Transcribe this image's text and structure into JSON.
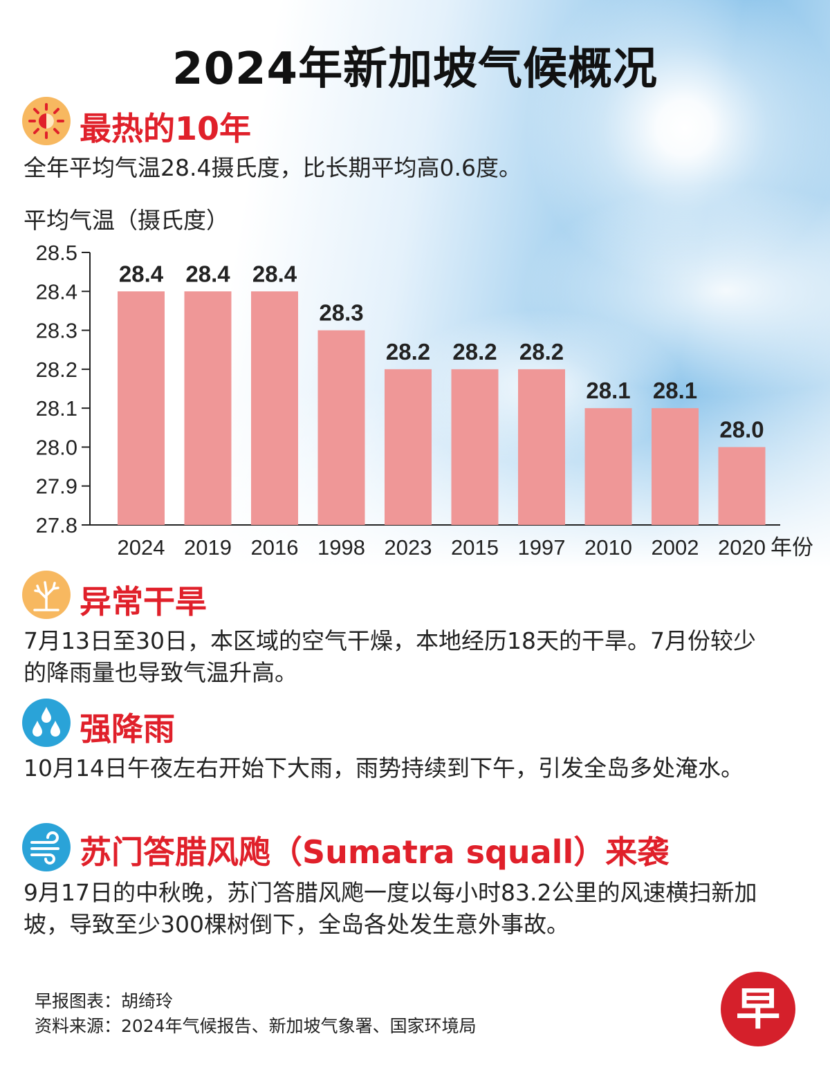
{
  "title": "2024年新加坡气候概况",
  "colors": {
    "accent": "#e0202a",
    "bar": "#ef9797",
    "text": "#222222"
  },
  "sections": {
    "hottest": {
      "icon": "sun-icon",
      "heading": "最热的10年",
      "text": "全年平均气温28.4摄氏度，比长期平均高0.6度。"
    },
    "drought": {
      "icon": "dry-tree-icon",
      "heading": "异常干旱",
      "text": "7月13日至30日，本区域的空气干燥，本地经历18天的干旱。7月份较少的降雨量也导致气温升高。"
    },
    "rain": {
      "icon": "raindrops-icon",
      "heading": "强降雨",
      "text": "10月14日午夜左右开始下大雨，雨势持续到下午，引发全岛多处淹水。"
    },
    "squall": {
      "icon": "wind-icon",
      "heading": "苏门答腊风飑（Sumatra squall）来袭",
      "text": "9月17日的中秋晚，苏门答腊风飑一度以每小时83.2公里的风速横扫新加坡，导致至少300棵树倒下，全岛各处发生意外事故。"
    }
  },
  "chart_data": {
    "type": "bar",
    "title": "最热的10年",
    "ylabel": "平均气温（摄氏度）",
    "xlabel": "年份",
    "categories": [
      "2024",
      "2019",
      "2016",
      "1998",
      "2023",
      "2015",
      "1997",
      "2010",
      "2002",
      "2020"
    ],
    "values": [
      28.4,
      28.4,
      28.4,
      28.3,
      28.2,
      28.2,
      28.2,
      28.1,
      28.1,
      28.0
    ],
    "value_labels": [
      "28.4",
      "28.4",
      "28.4",
      "28.3",
      "28.2",
      "28.2",
      "28.2",
      "28.1",
      "28.1",
      "28.0"
    ],
    "ylim": [
      27.8,
      28.5
    ],
    "yticks": [
      "27.8",
      "27.9",
      "28.0",
      "28.1",
      "28.2",
      "28.3",
      "28.4",
      "28.5"
    ],
    "grid": false
  },
  "footer": {
    "credit": "早报图表：胡绮玲",
    "source": "资料来源：2024年气候报告、新加坡气象署、国家环境局"
  },
  "logo": {
    "icon": "zaobao-logo-icon",
    "char": "早"
  }
}
